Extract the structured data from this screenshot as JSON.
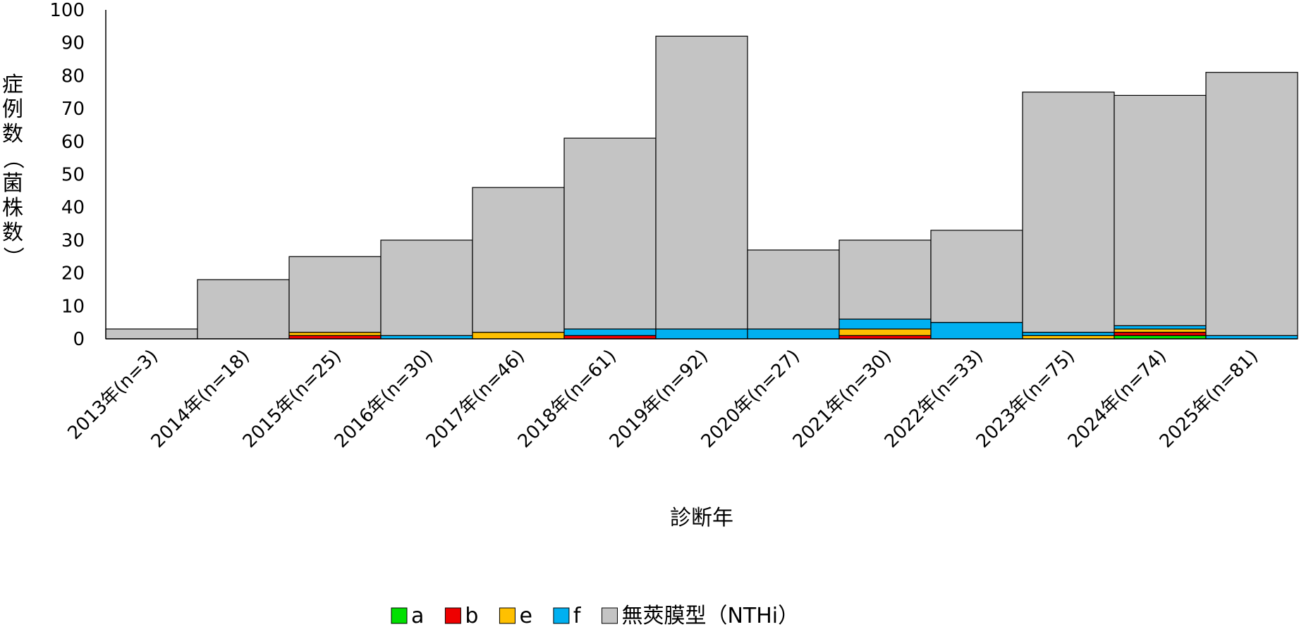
{
  "chart_data": {
    "type": "bar",
    "stacked": true,
    "xlabel": "診断年",
    "ylabel": "症例数（菌株数）",
    "ylim": [
      0,
      100
    ],
    "yticks": [
      0,
      10,
      20,
      30,
      40,
      50,
      60,
      70,
      80,
      90,
      100
    ],
    "grid": false,
    "legend_position": "bottom",
    "categories": [
      "2013年(n=3)",
      "2014年(n=18)",
      "2015年(n=25)",
      "2016年(n=30)",
      "2017年(n=46)",
      "2018年(n=61)",
      "2019年(n=92)",
      "2020年(n=27)",
      "2021年(n=30)",
      "2022年(n=33)",
      "2023年(n=75)",
      "2024年(n=74)",
      "2025年(n=81)"
    ],
    "series": [
      {
        "name": "a",
        "color": "#00e000",
        "values": [
          0,
          0,
          0,
          0,
          0,
          0,
          0,
          0,
          0,
          0,
          0,
          1,
          0
        ]
      },
      {
        "name": "b",
        "color": "#ee0000",
        "values": [
          0,
          0,
          1,
          0,
          0,
          1,
          0,
          0,
          1,
          0,
          0,
          1,
          0
        ]
      },
      {
        "name": "e",
        "color": "#ffc000",
        "values": [
          0,
          0,
          1,
          0,
          2,
          0,
          0,
          0,
          2,
          0,
          1,
          1,
          0
        ]
      },
      {
        "name": "f",
        "color": "#00b0f0",
        "values": [
          0,
          0,
          0,
          1,
          0,
          2,
          3,
          3,
          3,
          5,
          1,
          1,
          1
        ]
      },
      {
        "name": "無莢膜型（NTHi）",
        "color": "#c4c4c4",
        "values": [
          3,
          18,
          23,
          29,
          44,
          58,
          89,
          24,
          24,
          28,
          73,
          70,
          80
        ]
      }
    ]
  }
}
